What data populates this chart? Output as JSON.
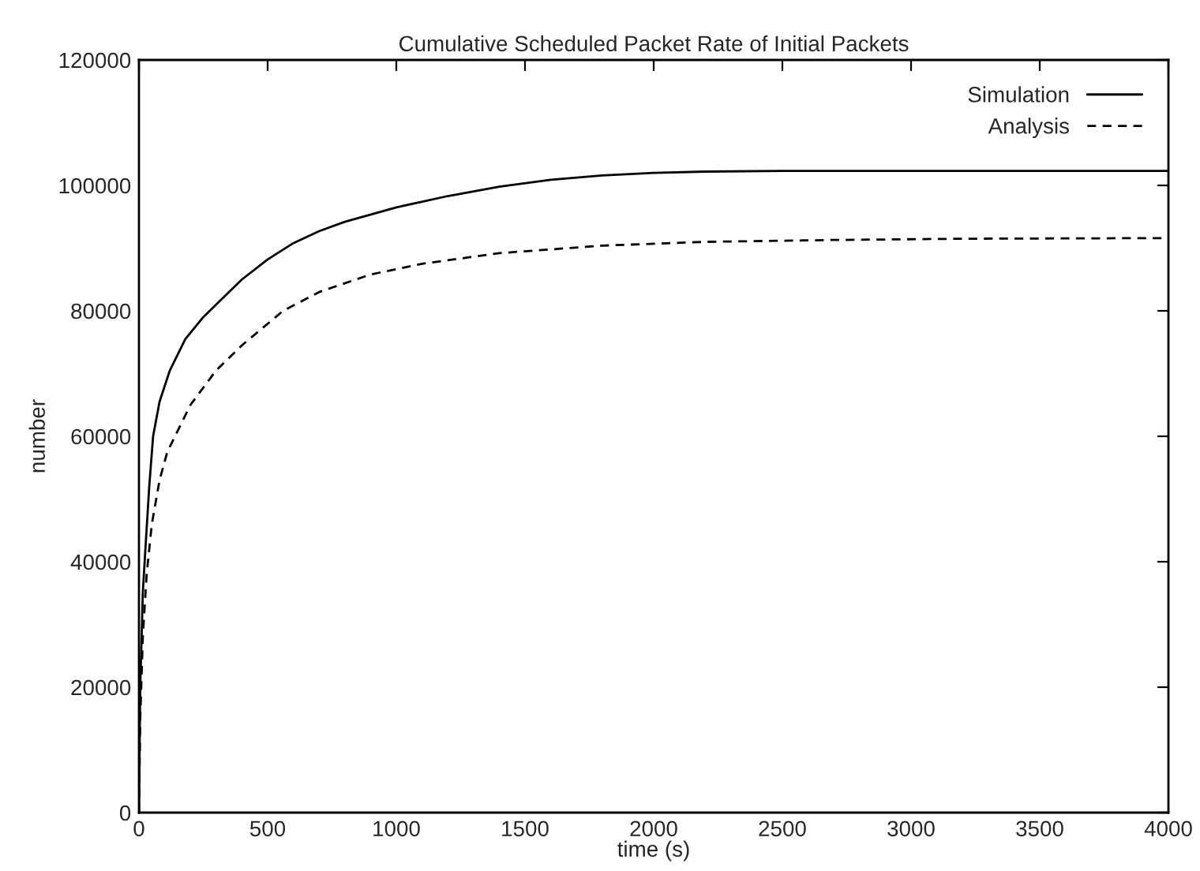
{
  "chart_data": {
    "type": "line",
    "title": "Cumulative Scheduled Packet Rate of Initial Packets",
    "xlabel": "time (s)",
    "ylabel": "number",
    "xlim": [
      0,
      4000
    ],
    "xticks": [
      0,
      500,
      1000,
      1500,
      2000,
      2500,
      3000,
      3500,
      4000
    ],
    "ylim": [
      0,
      120000
    ],
    "yticks": [
      0,
      20000,
      40000,
      60000,
      80000,
      100000,
      120000
    ],
    "grid": false,
    "legend": "top right",
    "marker": "none",
    "series": [
      {
        "name": "Simulation",
        "color": "#000000",
        "line_style": "solid",
        "x": [
          0,
          5,
          15,
          25,
          40,
          55,
          80,
          120,
          180,
          250,
          300,
          400,
          500,
          600,
          700,
          800,
          1000,
          1200,
          1400,
          1600,
          1800,
          2000,
          2200,
          2500,
          3000,
          4000
        ],
        "values": [
          0,
          20000,
          35000,
          42000,
          52000,
          60000,
          65500,
          70500,
          75500,
          79000,
          81000,
          85000,
          88200,
          90800,
          92700,
          94200,
          96500,
          98300,
          99800,
          100900,
          101600,
          102000,
          102200,
          102300,
          102300,
          102300
        ]
      },
      {
        "name": "Analysis",
        "color": "#000000",
        "line_style": "dashed",
        "x": [
          0,
          5,
          15,
          30,
          50,
          80,
          110,
          140,
          200,
          300,
          400,
          560,
          700,
          900,
          1100,
          1400,
          1800,
          2200,
          2700,
          3200,
          4000
        ],
        "values": [
          0,
          15000,
          28000,
          38000,
          46000,
          53000,
          57500,
          60000,
          65000,
          70500,
          74500,
          80000,
          83000,
          85800,
          87500,
          89200,
          90400,
          91000,
          91300,
          91500,
          91600
        ]
      }
    ]
  }
}
